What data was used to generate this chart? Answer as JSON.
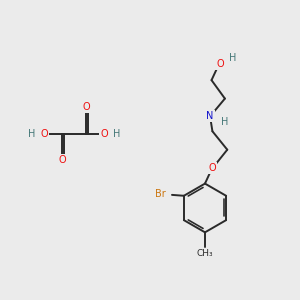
{
  "bg_color": "#ebebeb",
  "bond_color": "#2a2a2a",
  "bond_lw": 1.4,
  "atom_colors": {
    "O": "#ee1111",
    "N": "#1111cc",
    "Br": "#cc7711",
    "H": "#447777",
    "C": "#2a2a2a",
    "methyl": "#2a2a2a"
  },
  "font_size": 7.0,
  "xlim": [
    0,
    10
  ],
  "ylim": [
    0,
    10
  ]
}
